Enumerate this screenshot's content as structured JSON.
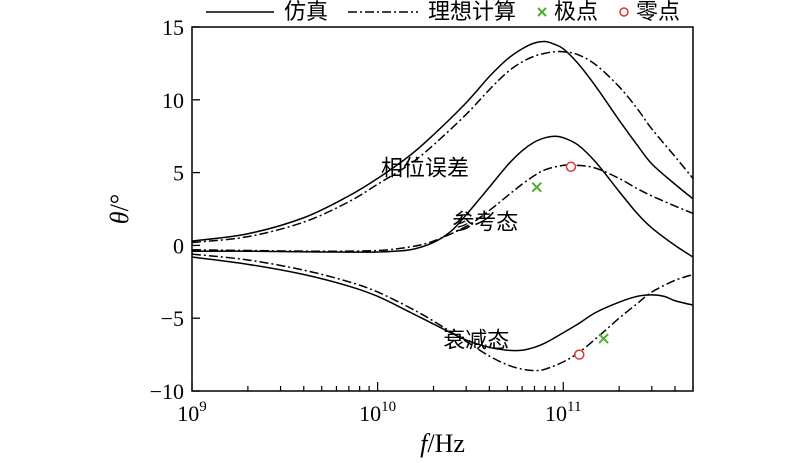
{
  "chart_data": {
    "type": "line",
    "xlabel_italic": "f",
    "xlabel_rest": "/Hz",
    "ylabel_italic": "θ",
    "ylabel_rest": "/°",
    "xscale": "log",
    "xlim": [
      1000000000.0,
      500000000000.0
    ],
    "ylim": [
      -10,
      15
    ],
    "x_ticks": [
      {
        "value": 1000000000.0,
        "base": "10",
        "exp": "9"
      },
      {
        "value": 10000000000.0,
        "base": "10",
        "exp": "10"
      },
      {
        "value": 100000000000.0,
        "base": "10",
        "exp": "11"
      }
    ],
    "y_ticks": [
      {
        "value": -10,
        "label": "−10"
      },
      {
        "value": -5,
        "label": "−5"
      },
      {
        "value": 0,
        "label": "0"
      },
      {
        "value": 5,
        "label": "5"
      },
      {
        "value": 10,
        "label": "10"
      },
      {
        "value": 15,
        "label": "15"
      }
    ],
    "legend": [
      {
        "label": "仿真",
        "kind": "solid"
      },
      {
        "label": "理想计算",
        "kind": "dashdot"
      },
      {
        "label": "极点",
        "kind": "cross",
        "color": "#4caf2a"
      },
      {
        "label": "零点",
        "kind": "circle",
        "color": "#d9373a"
      }
    ],
    "legend_position": "top",
    "annotations": [
      {
        "text": "相位误差",
        "x": 18000000000.0,
        "y": 4.8
      },
      {
        "text": "参考态",
        "x": 38000000000.0,
        "y": 1.1
      },
      {
        "text": "衰减态",
        "x": 34000000000.0,
        "y": -7.0
      }
    ],
    "series": [
      {
        "group": "相位误差",
        "style": "solid",
        "x": [
          1000000000.0,
          2000000000.0,
          4000000000.0,
          7000000000.0,
          10000000000.0,
          15000000000.0,
          20000000000.0,
          30000000000.0,
          40000000000.0,
          50000000000.0,
          60000000000.0,
          70000000000.0,
          80000000000.0,
          90000000000.0,
          100000000000.0,
          120000000000.0,
          150000000000.0,
          200000000000.0,
          250000000000.0,
          300000000000.0,
          400000000000.0,
          500000000000.0
        ],
        "y": [
          0.3,
          0.8,
          1.9,
          3.4,
          4.6,
          6.2,
          7.6,
          9.8,
          11.6,
          12.8,
          13.5,
          13.9,
          14.0,
          13.8,
          13.5,
          12.5,
          10.9,
          8.6,
          6.9,
          5.6,
          4.2,
          3.2
        ]
      },
      {
        "group": "相位误差",
        "style": "dashdot",
        "x": [
          1000000000.0,
          2000000000.0,
          4000000000.0,
          7000000000.0,
          10000000000.0,
          15000000000.0,
          20000000000.0,
          30000000000.0,
          40000000000.0,
          50000000000.0,
          60000000000.0,
          70000000000.0,
          80000000000.0,
          90000000000.0,
          100000000000.0,
          120000000000.0,
          150000000000.0,
          200000000000.0,
          250000000000.0,
          300000000000.0,
          400000000000.0,
          500000000000.0
        ],
        "y": [
          0.2,
          0.6,
          1.6,
          3.0,
          4.2,
          5.6,
          6.9,
          9.0,
          10.7,
          11.9,
          12.6,
          13.0,
          13.2,
          13.3,
          13.3,
          13.1,
          12.4,
          10.9,
          9.4,
          8.0,
          6.1,
          4.6
        ]
      },
      {
        "group": "参考态",
        "style": "solid",
        "x": [
          1000000000.0,
          2000000000.0,
          5000000000.0,
          10000000000.0,
          15000000000.0,
          20000000000.0,
          25000000000.0,
          30000000000.0,
          40000000000.0,
          50000000000.0,
          60000000000.0,
          70000000000.0,
          80000000000.0,
          90000000000.0,
          100000000000.0,
          120000000000.0,
          150000000000.0,
          200000000000.0,
          250000000000.0,
          300000000000.0,
          400000000000.0,
          500000000000.0
        ],
        "y": [
          -0.4,
          -0.4,
          -0.45,
          -0.45,
          -0.3,
          0.2,
          1.0,
          2.1,
          4.0,
          5.5,
          6.5,
          7.1,
          7.4,
          7.5,
          7.4,
          6.9,
          5.7,
          3.7,
          2.2,
          1.2,
          0.0,
          -0.8
        ]
      },
      {
        "group": "参考态",
        "style": "dashdot",
        "x": [
          1000000000.0,
          2000000000.0,
          5000000000.0,
          10000000000.0,
          15000000000.0,
          20000000000.0,
          30000000000.0,
          40000000000.0,
          50000000000.0,
          60000000000.0,
          70000000000.0,
          80000000000.0,
          100000000000.0,
          120000000000.0,
          150000000000.0,
          200000000000.0,
          250000000000.0,
          300000000000.0,
          400000000000.0,
          500000000000.0
        ],
        "y": [
          -0.3,
          -0.35,
          -0.4,
          -0.35,
          -0.1,
          0.3,
          1.3,
          2.4,
          3.4,
          4.2,
          4.8,
          5.2,
          5.5,
          5.5,
          5.3,
          4.6,
          3.9,
          3.4,
          2.7,
          2.2
        ]
      },
      {
        "group": "衰减态",
        "style": "solid",
        "x": [
          1000000000.0,
          2000000000.0,
          4000000000.0,
          7000000000.0,
          10000000000.0,
          15000000000.0,
          20000000000.0,
          30000000000.0,
          40000000000.0,
          50000000000.0,
          60000000000.0,
          70000000000.0,
          80000000000.0,
          100000000000.0,
          120000000000.0,
          150000000000.0,
          200000000000.0,
          250000000000.0,
          300000000000.0,
          350000000000.0,
          400000000000.0,
          500000000000.0
        ],
        "y": [
          -0.8,
          -1.3,
          -2.0,
          -2.8,
          -3.5,
          -4.6,
          -5.4,
          -6.5,
          -7.0,
          -7.2,
          -7.2,
          -7.0,
          -6.7,
          -6.0,
          -5.4,
          -4.6,
          -3.9,
          -3.5,
          -3.4,
          -3.5,
          -3.8,
          -4.1
        ]
      },
      {
        "group": "衰减态",
        "style": "dashdot",
        "x": [
          1000000000.0,
          2000000000.0,
          4000000000.0,
          7000000000.0,
          10000000000.0,
          15000000000.0,
          20000000000.0,
          30000000000.0,
          40000000000.0,
          50000000000.0,
          60000000000.0,
          70000000000.0,
          80000000000.0,
          100000000000.0,
          120000000000.0,
          150000000000.0,
          200000000000.0,
          250000000000.0,
          300000000000.0,
          400000000000.0,
          500000000000.0
        ],
        "y": [
          -0.6,
          -1.0,
          -1.7,
          -2.5,
          -3.2,
          -4.3,
          -5.2,
          -6.6,
          -7.6,
          -8.2,
          -8.5,
          -8.6,
          -8.5,
          -8.0,
          -7.4,
          -6.4,
          -5.0,
          -4.0,
          -3.2,
          -2.4,
          -2.0
        ]
      }
    ],
    "poles": [
      {
        "x": 72000000000.0,
        "y": 4.0
      },
      {
        "x": 165000000000.0,
        "y": -6.4
      }
    ],
    "zeros": [
      {
        "x": 110000000000.0,
        "y": 5.4
      },
      {
        "x": 122000000000.0,
        "y": -7.5
      }
    ]
  }
}
